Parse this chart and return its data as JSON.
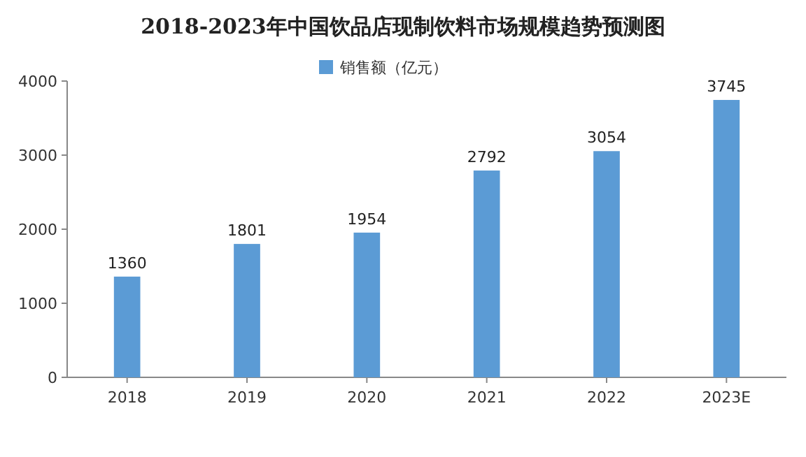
{
  "chart_data": {
    "type": "bar",
    "title": "2018-2023年中国饮品店现制饮料市场规模趋势预测图",
    "categories": [
      "2018",
      "2019",
      "2020",
      "2021",
      "2022",
      "2023E"
    ],
    "series": [
      {
        "name": "销售额（亿元）",
        "color": "#5b9bd5",
        "values": [
          1360,
          1801,
          1954,
          2792,
          3054,
          3745
        ]
      }
    ],
    "ylim": [
      0,
      4000
    ],
    "yticks": [
      0,
      1000,
      2000,
      3000,
      4000
    ],
    "data_labels": true,
    "legend": "top",
    "grid": false
  }
}
